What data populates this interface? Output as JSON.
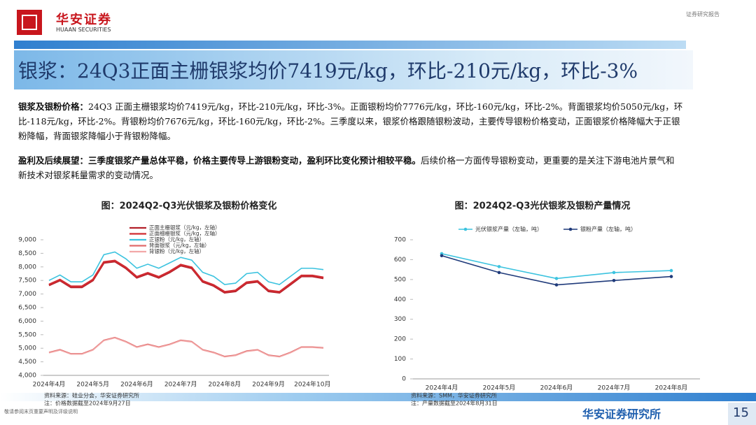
{
  "header": {
    "logo_text": "华安证券",
    "logo_subtext": "HUAAN SECURITIES",
    "report_type": "证券研究报告"
  },
  "title": "银浆：24Q3正面主栅银浆均价7419元/kg，环比-210元/kg，环比-3%",
  "paragraphs": [
    {
      "bold": "银浆及银粉价格：",
      "text": "24Q3 正面主栅银浆均价7419元/kg，环比-210元/kg，环比-3%。正面银粉均价7776元/kg，环比-160元/kg，环比-2%。背面银浆均价5050元/kg，环比-118元/kg，环比-2%。背银粉均价7676元/kg，环比-160元/kg，环比-2%。三季度以来，银浆价格跟随银粉波动，主要传导银粉价格变动，正面银浆价格降幅大于正银粉降幅，背面银浆降幅小于背银粉降幅。"
    },
    {
      "bold": "盈利及后续展望：三季度银浆产量总体平稳，价格主要传导上游银粉变动，盈利环比变化预计相较平稳。",
      "text": "后续价格一方面传导银粉变动，更重要的是关注下游电池片景气和新技术对银浆耗量需求的变动情况。"
    }
  ],
  "chart_data": [
    {
      "type": "line",
      "title": "图：2024Q2-Q3光伏银浆及银粉价格变化",
      "categories": [
        "2024年4月",
        null,
        null,
        null,
        "2024年5月",
        null,
        null,
        null,
        "2024年6月",
        null,
        null,
        null,
        "2024年7月",
        null,
        null,
        null,
        "2024年8月",
        null,
        null,
        null,
        "2024年9月",
        null,
        null,
        null,
        "2024年10月",
        null
      ],
      "series": [
        {
          "name": "正面主栅银浆（元/kg，左轴）",
          "color": "#b3202a",
          "values": [
            7320,
            7500,
            7250,
            7250,
            7500,
            8150,
            8200,
            7950,
            7600,
            7750,
            7600,
            7800,
            8050,
            7950,
            7450,
            7300,
            7050,
            7100,
            7400,
            7450,
            7100,
            7050,
            7350,
            7650,
            7650,
            7580
          ]
        },
        {
          "name": "正面细栅银浆（元/kg，左轴）",
          "color": "#d02a30",
          "values": [
            7350,
            7530,
            7280,
            7280,
            7530,
            8180,
            8230,
            7980,
            7630,
            7780,
            7630,
            7830,
            8080,
            7980,
            7480,
            7330,
            7080,
            7130,
            7430,
            7480,
            7130,
            7080,
            7380,
            7680,
            7680,
            7610
          ]
        },
        {
          "name": "正银粉（元/kg，左轴）",
          "color": "#3cc3df",
          "values": [
            7500,
            7700,
            7450,
            7450,
            7700,
            8450,
            8550,
            8300,
            7950,
            8100,
            7950,
            8150,
            8350,
            8250,
            7800,
            7650,
            7350,
            7400,
            7750,
            7800,
            7450,
            7350,
            7650,
            7950,
            7950,
            7900
          ]
        },
        {
          "name": "背面银浆（元/kg，左轴）",
          "color": "#e06a6a",
          "values": [
            4850,
            4950,
            4800,
            4800,
            4950,
            5300,
            5400,
            5250,
            5050,
            5150,
            5050,
            5150,
            5300,
            5250,
            4950,
            4850,
            4700,
            4750,
            4900,
            4950,
            4750,
            4700,
            4850,
            5050,
            5050,
            5020
          ]
        },
        {
          "name": "背银粉（元/kg，左轴）",
          "color": "#f2a8a8",
          "values": [
            4830,
            4930,
            4780,
            4780,
            4930,
            5280,
            5380,
            5230,
            5030,
            5130,
            5030,
            5130,
            5280,
            5230,
            4930,
            4830,
            4680,
            4730,
            4880,
            4930,
            4730,
            4680,
            4830,
            5030,
            5030,
            5000
          ]
        }
      ],
      "ylim": [
        4000,
        9000
      ],
      "yticks": [
        {
          "value": 4000,
          "label": "4,000"
        },
        {
          "value": 4500,
          "label": "4,500"
        },
        {
          "value": 5000,
          "label": "5,000"
        },
        {
          "value": 5500,
          "label": "5,500"
        },
        {
          "value": 6000,
          "label": "6,000"
        },
        {
          "value": 6500,
          "label": "6,500"
        },
        {
          "value": 7000,
          "label": "7,000"
        },
        {
          "value": 7500,
          "label": "7,500"
        },
        {
          "value": 8000,
          "label": "8,000"
        },
        {
          "value": 8500,
          "label": "8,500"
        },
        {
          "value": 9000,
          "label": "9,000"
        }
      ],
      "source": "资料来源：硅业分会，华安证券研究所",
      "note": "注：价格数据截至2024年9月27日"
    },
    {
      "type": "line",
      "title": "图：2024Q2-Q3光伏银浆及银粉产量情况",
      "categories": [
        "2024年4月",
        "2024年5月",
        "2024年6月",
        "2024年7月",
        "2024年8月"
      ],
      "series": [
        {
          "name": "光伏银浆产量（左轴，吨）",
          "color": "#3cc3df",
          "values": [
            630,
            565,
            505,
            535,
            545
          ]
        },
        {
          "name": "银粉产量（左轴，吨）",
          "color": "#1f3a7a",
          "values": [
            620,
            535,
            473,
            495,
            515
          ]
        }
      ],
      "ylim": [
        0,
        700
      ],
      "yticks": [
        0,
        100,
        200,
        300,
        400,
        500,
        600,
        700
      ],
      "markers": true,
      "source": "资料来源：SMM，华安证券研究所",
      "note": "注：产量数据截至2024年8月31日"
    }
  ],
  "footer": {
    "disclaimer": "敬请参阅末页重要声明及评级说明",
    "brand": "华安证券研究所",
    "page": "15"
  }
}
